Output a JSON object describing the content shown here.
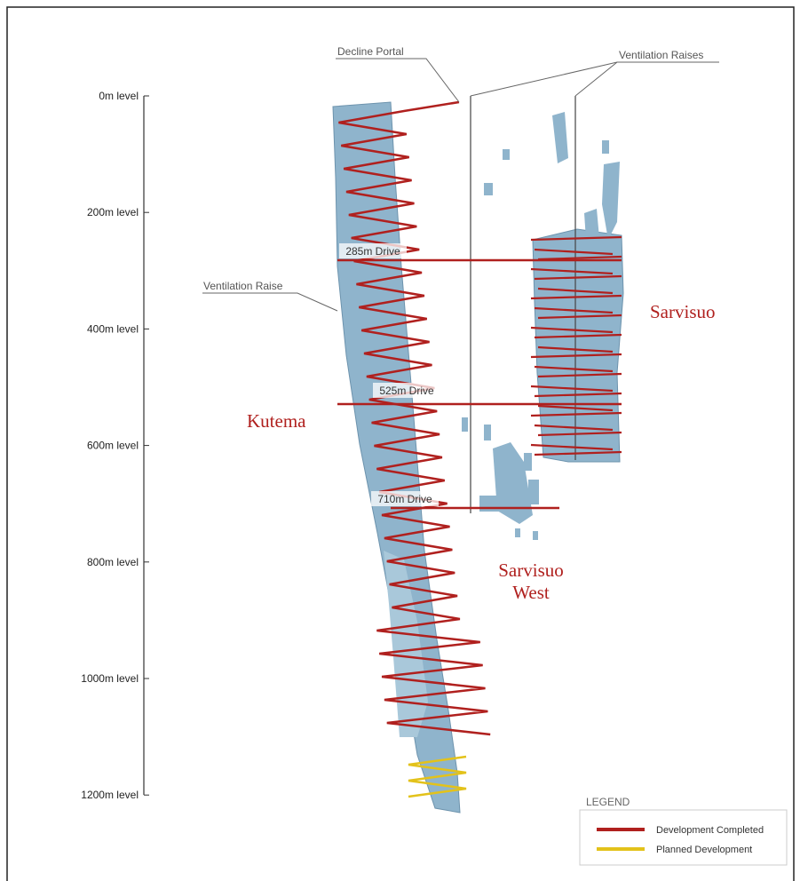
{
  "depth_axis": {
    "labels": [
      "0m level",
      "200m level",
      "400m level",
      "600m level",
      "800m level",
      "1000m level",
      "1200m level"
    ]
  },
  "callouts": {
    "decline_portal": "Decline Portal",
    "ventilation_raises": "Ventilation Raises",
    "ventilation_raise": "Ventilation Raise"
  },
  "drives": [
    "285m Drive",
    "525m Drive",
    "710m Drive"
  ],
  "ore_bodies": {
    "kutema": "Kutema",
    "sarvisuo": "Sarvisuo",
    "sarvisuo_west": [
      "Sarvisuo",
      "West"
    ]
  },
  "legend": {
    "title": "LEGEND",
    "items": [
      {
        "label": "Development Completed",
        "color": "#b0201e"
      },
      {
        "label": "Planned Development",
        "color": "#e3c21a"
      }
    ]
  }
}
